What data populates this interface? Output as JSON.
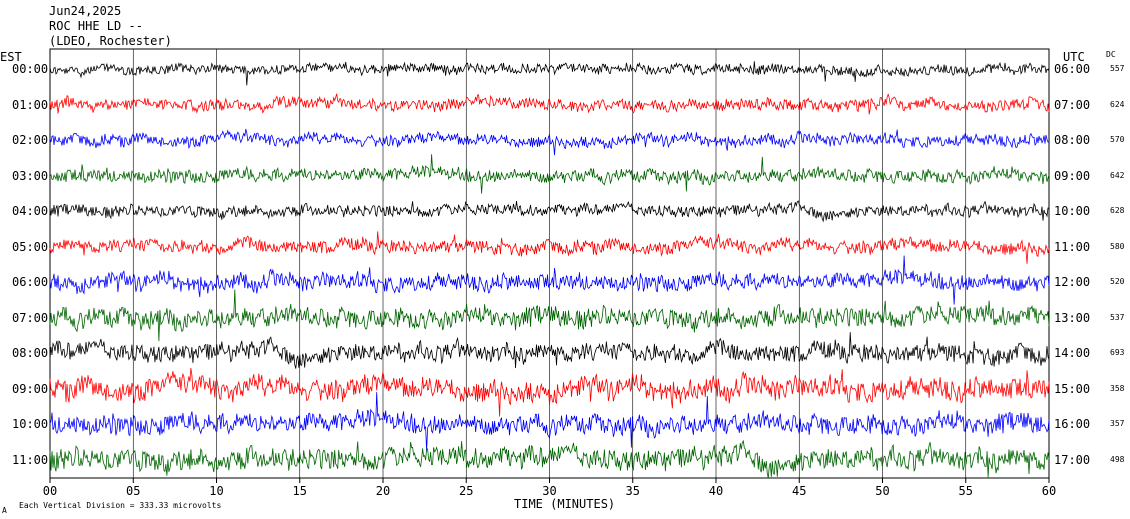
{
  "header": {
    "date": "Jun24,2025",
    "station": "ROC HHE LD --",
    "location": "(LDEO, Rochester)"
  },
  "left_tz": "EST",
  "right_tz": "UTC",
  "dc_header": "DC",
  "footer": {
    "time_label": "TIME (MINUTES)",
    "scale_note": "Each Vertical Division = 333.33 microvolts",
    "corner_mark": "A"
  },
  "chart_data": {
    "type": "line",
    "title": "ROC HHE LD --",
    "xlabel": "TIME (MINUTES)",
    "xlim": [
      0,
      60
    ],
    "x_ticks": [
      "00",
      "05",
      "10",
      "15",
      "20",
      "25",
      "30",
      "35",
      "40",
      "45",
      "50",
      "55",
      "60"
    ],
    "grid": true,
    "trace_colors": [
      "#000000",
      "#ff0000",
      "#0000ff",
      "#006400"
    ],
    "rows": [
      {
        "est": "00:00",
        "utc": "06:00",
        "dc": "557",
        "color": "#000000",
        "amplitude": 6
      },
      {
        "est": "01:00",
        "utc": "07:00",
        "dc": "624",
        "color": "#ff0000",
        "amplitude": 7
      },
      {
        "est": "02:00",
        "utc": "08:00",
        "dc": "570",
        "color": "#0000ff",
        "amplitude": 7
      },
      {
        "est": "03:00",
        "utc": "09:00",
        "dc": "642",
        "color": "#006400",
        "amplitude": 8
      },
      {
        "est": "04:00",
        "utc": "10:00",
        "dc": "628",
        "color": "#000000",
        "amplitude": 7
      },
      {
        "est": "05:00",
        "utc": "11:00",
        "dc": "580",
        "color": "#ff0000",
        "amplitude": 8
      },
      {
        "est": "06:00",
        "utc": "12:00",
        "dc": "520",
        "color": "#0000ff",
        "amplitude": 10
      },
      {
        "est": "07:00",
        "utc": "13:00",
        "dc": "537",
        "color": "#006400",
        "amplitude": 12
      },
      {
        "est": "08:00",
        "utc": "14:00",
        "dc": "693",
        "color": "#000000",
        "amplitude": 11
      },
      {
        "est": "09:00",
        "utc": "15:00",
        "dc": "358",
        "color": "#ff0000",
        "amplitude": 13
      },
      {
        "est": "10:00",
        "utc": "16:00",
        "dc": "357",
        "color": "#0000ff",
        "amplitude": 12
      },
      {
        "est": "11:00",
        "utc": "17:00",
        "dc": "498",
        "color": "#006400",
        "amplitude": 13
      }
    ]
  }
}
